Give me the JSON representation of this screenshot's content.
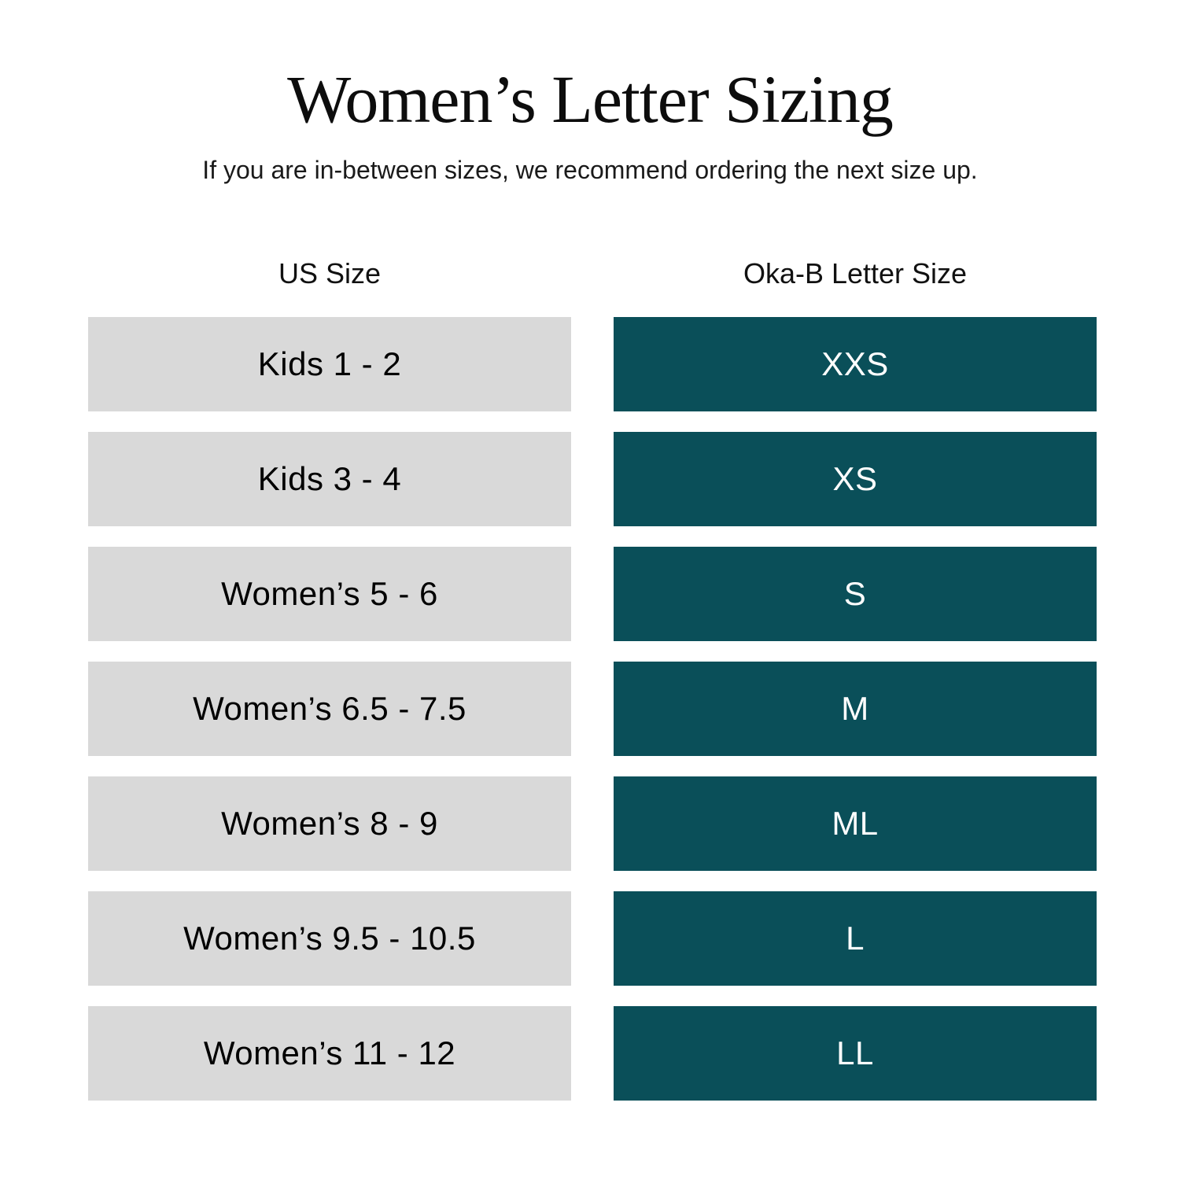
{
  "chart_data": {
    "type": "table",
    "title": "Women’s Letter Sizing",
    "subtitle": "If you are in-between sizes, we recommend ordering the next size up.",
    "columns": [
      "US Size",
      "Oka-B Letter Size"
    ],
    "rows": [
      [
        "Kids 1 - 2",
        "XXS"
      ],
      [
        "Kids 3 - 4",
        "XS"
      ],
      [
        "Women’s 5 - 6",
        "S"
      ],
      [
        "Women’s 6.5 - 7.5",
        "M"
      ],
      [
        "Women’s 8 - 9",
        "ML"
      ],
      [
        "Women’s 9.5 - 10.5",
        "L"
      ],
      [
        "Women’s 11 - 12",
        "LL"
      ]
    ],
    "legend_position": "none",
    "grid": false
  },
  "colors": {
    "accent_teal": "#0a4f59",
    "row_gray": "#d9d9d9",
    "text_light": "#ffffff",
    "text_dark": "#0d0d0d"
  }
}
